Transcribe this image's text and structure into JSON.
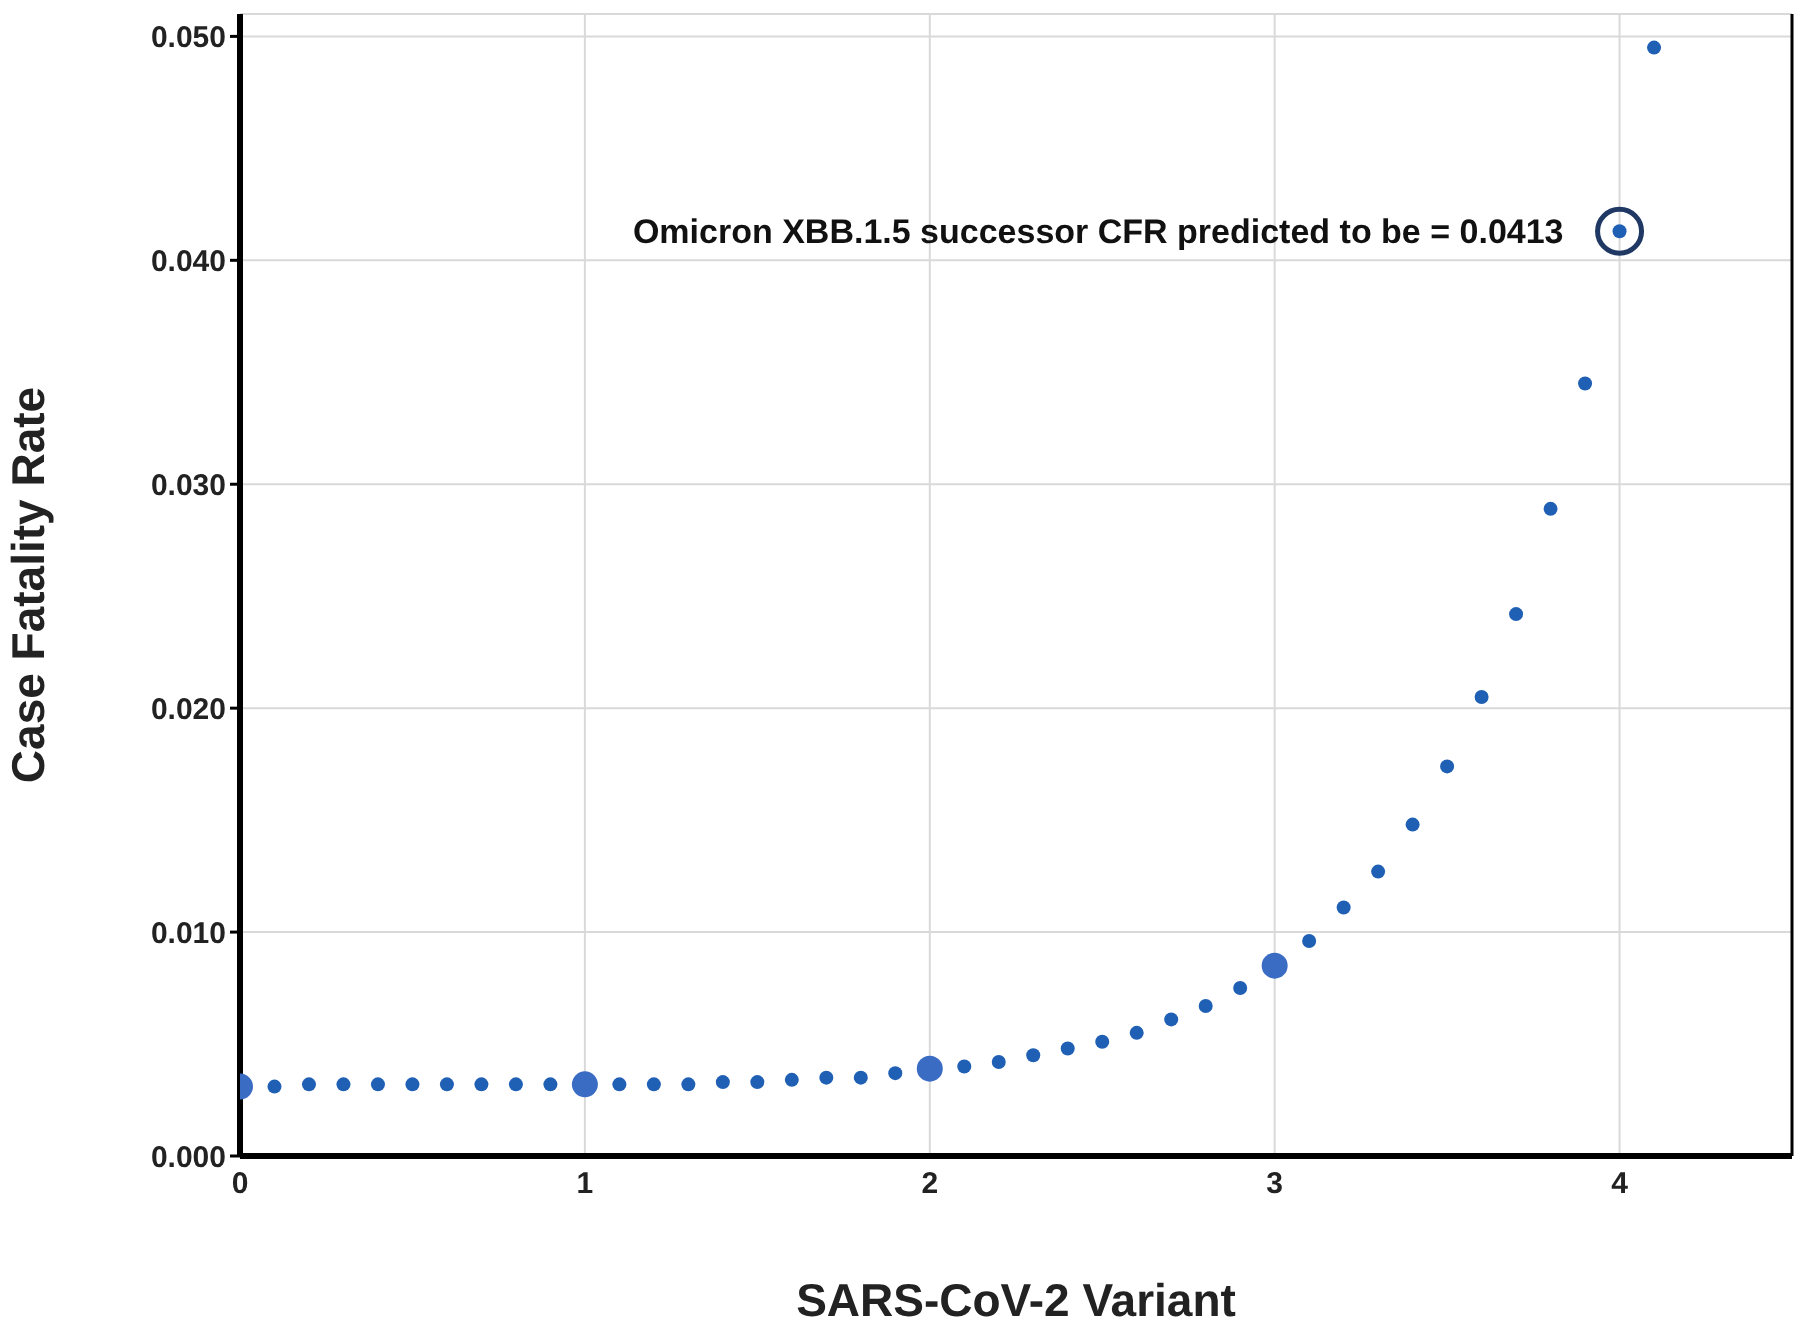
{
  "chart_data": {
    "type": "scatter",
    "xlabel": "SARS-CoV-2 Variant",
    "ylabel": "Case Fatality Rate",
    "xlim": [
      0,
      4.5
    ],
    "xticks": [
      0,
      1,
      2,
      3,
      4
    ],
    "ylim": [
      0,
      0.051
    ],
    "yticks": [
      {
        "value": 0,
        "label": "0.000"
      },
      {
        "value": 0.01,
        "label": "0.010"
      },
      {
        "value": 0.02,
        "label": "0.020"
      },
      {
        "value": 0.03,
        "label": "0.030"
      },
      {
        "value": 0.04,
        "label": "0.040"
      },
      {
        "value": 0.05,
        "label": "0.050"
      }
    ],
    "grid": true,
    "marker": "circle",
    "series": [
      {
        "color": "#1f5fb4",
        "x": [
          0.1,
          0.2,
          0.3,
          0.4,
          0.5,
          0.6,
          0.7,
          0.8,
          0.9,
          1.1,
          1.2,
          1.3,
          1.4,
          1.5,
          1.6,
          1.7,
          1.8,
          1.9,
          2.1,
          2.2,
          2.3,
          2.4,
          2.5,
          2.6,
          2.7,
          2.8,
          2.9,
          3.1,
          3.2,
          3.3,
          3.4,
          3.5,
          3.6,
          3.7,
          3.8,
          3.9,
          4,
          4.1
        ],
        "values": [
          0.0031,
          0.0032,
          0.0032,
          0.0032,
          0.0032,
          0.0032,
          0.0032,
          0.0032,
          0.0032,
          0.0032,
          0.0032,
          0.0032,
          0.0033,
          0.0033,
          0.0034,
          0.0035,
          0.0035,
          0.0037,
          0.004,
          0.0042,
          0.0045,
          0.0048,
          0.0051,
          0.0055,
          0.0061,
          0.0067,
          0.0075,
          0.0096,
          0.0111,
          0.0127,
          0.0148,
          0.0174,
          0.0205,
          0.0242,
          0.0289,
          0.0345,
          0.0413,
          0.0495
        ]
      },
      {
        "color": "#3a6cc4",
        "x": [
          0,
          1,
          2,
          3
        ],
        "values": [
          0.0031,
          0.0032,
          0.0039,
          0.0085
        ]
      }
    ],
    "annotations": [
      {
        "text": "Omicron XBB.1.5 successor CFR predicted to be = 0.0413",
        "x": 4,
        "y": 0.0413
      }
    ]
  }
}
